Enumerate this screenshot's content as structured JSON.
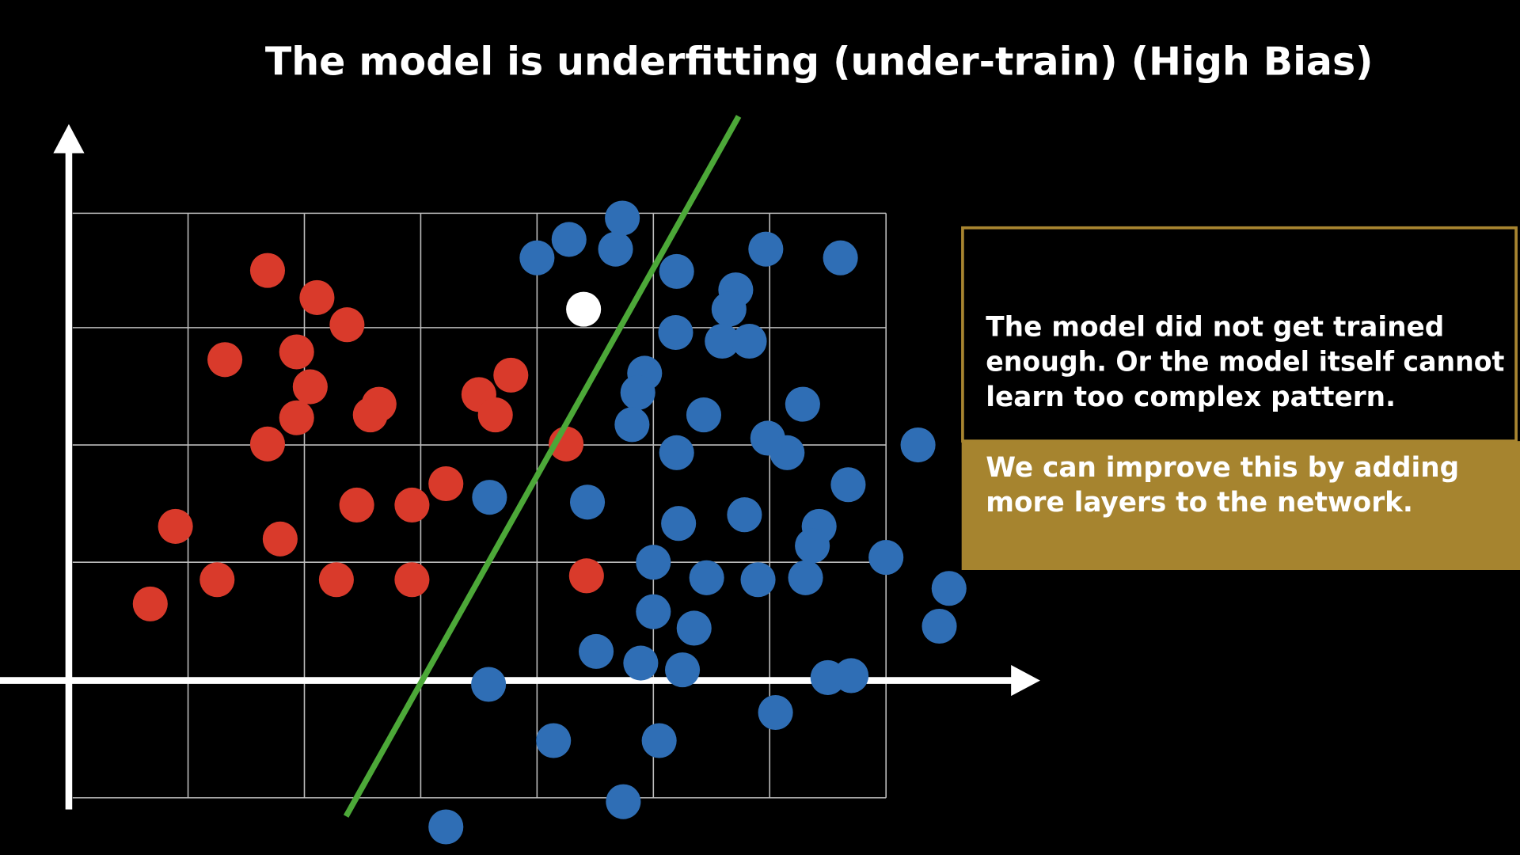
{
  "title": "The model is underfitting (under-train) (High Bias)",
  "explanation": {
    "lines": [
      "The model did not get trained",
      "enough. Or the model itself cannot",
      "learn too complex pattern."
    ]
  },
  "remedy": {
    "lines": [
      "We can improve this by adding",
      "more layers to the network."
    ]
  }
}
